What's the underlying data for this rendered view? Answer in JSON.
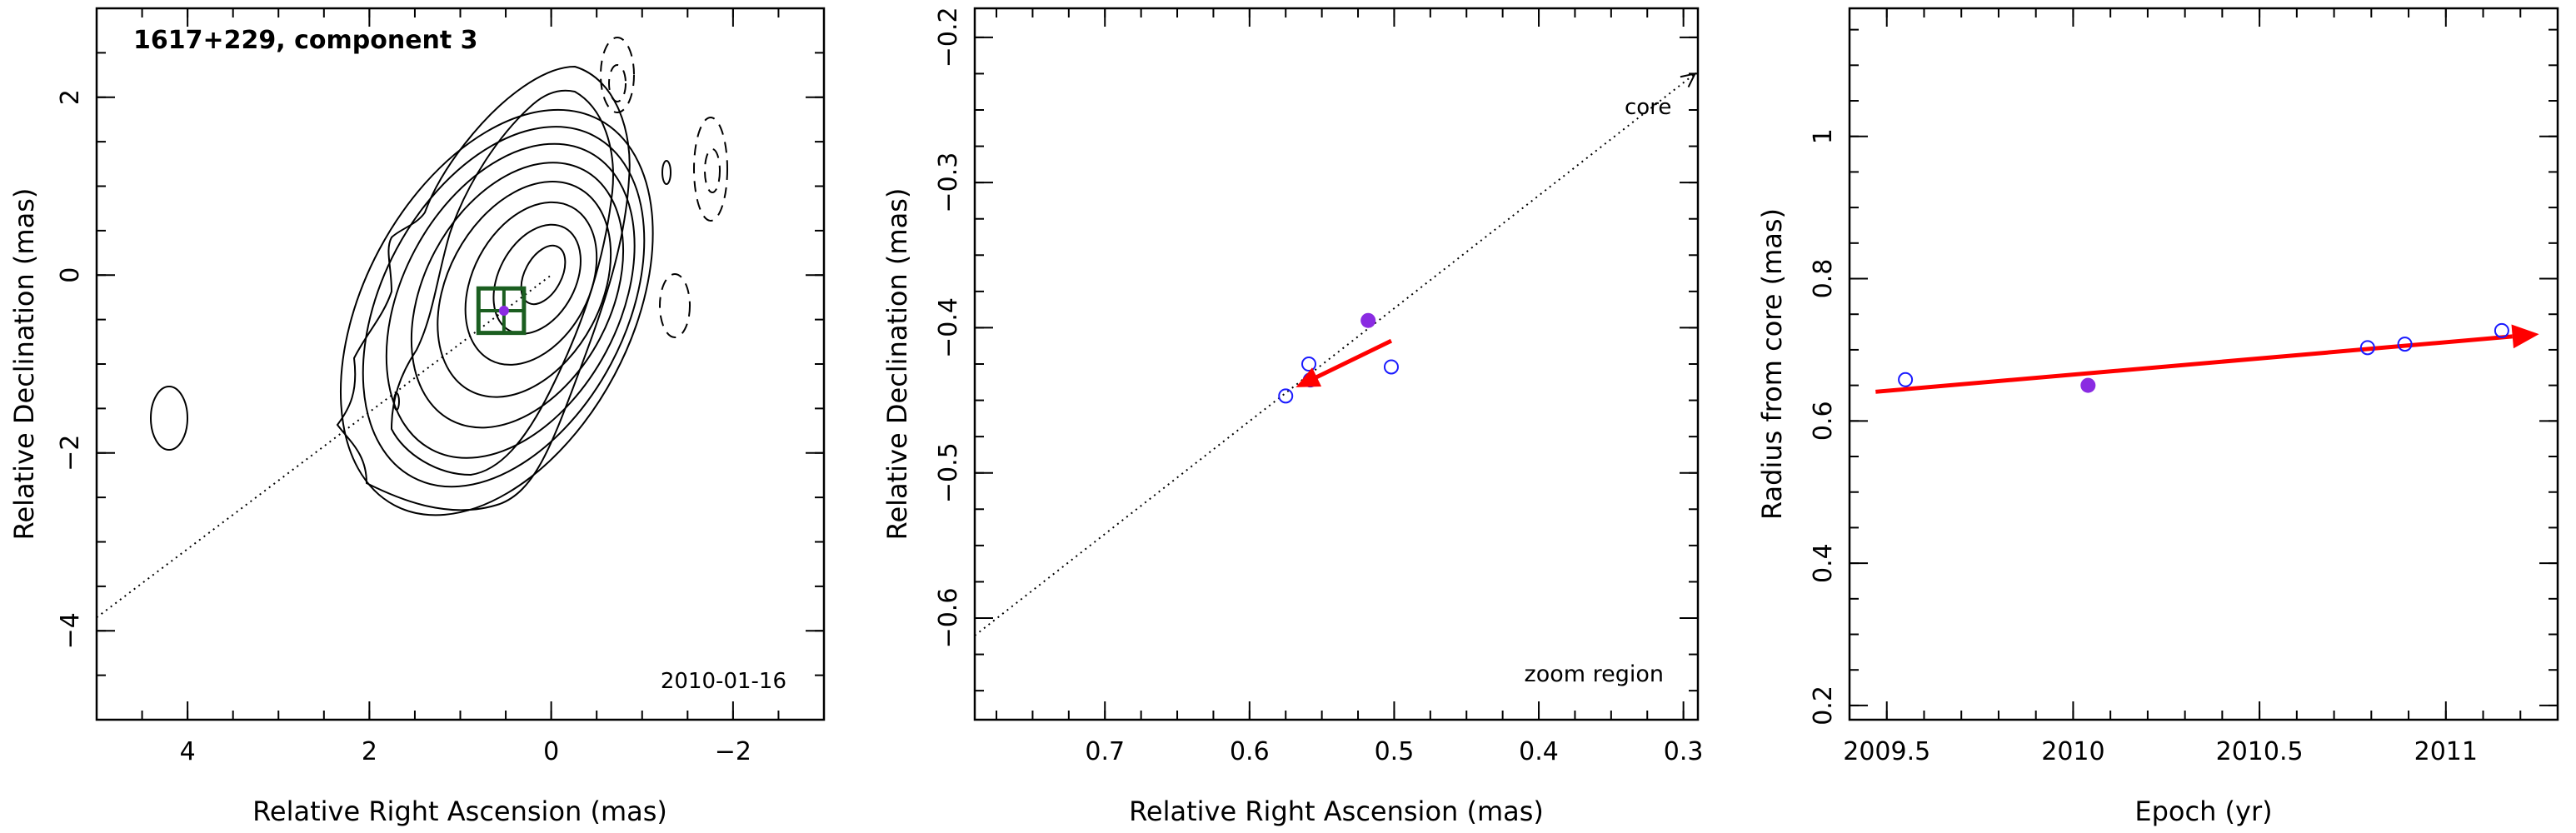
{
  "chart_data": [
    {
      "type": "contour",
      "title": "1617+229, component 3",
      "date": "2010-01-16",
      "xlabel": "Relative Right Ascension (mas)",
      "ylabel": "Relative Declination (mas)",
      "xlim": [
        5,
        -3
      ],
      "ylim": [
        -5,
        3
      ],
      "xticks": [
        4,
        2,
        0,
        -2
      ],
      "yticks": [
        2,
        0,
        -2,
        -4
      ],
      "tick_labels_x": [
        "4",
        "2",
        "0",
        "−2"
      ],
      "tick_labels_y": [
        "2",
        "0",
        "−2",
        "−4"
      ],
      "component_position": {
        "x": 0.52,
        "y": -0.4
      },
      "zoom_box": {
        "x": [
          0.8,
          0.3
        ],
        "y": [
          -0.65,
          -0.15
        ]
      },
      "core_line": {
        "x": [
          5.0,
          0.0
        ],
        "y": [
          -3.85,
          0.0
        ]
      }
    },
    {
      "type": "scatter",
      "annotation_core": "core",
      "annotation_zoom": "zoom region",
      "xlabel": "Relative Right Ascension (mas)",
      "ylabel": "Relative Declination (mas)",
      "xlim": [
        0.79,
        0.29
      ],
      "ylim": [
        -0.67,
        -0.18
      ],
      "xticks": [
        0.7,
        0.6,
        0.5,
        0.4,
        0.3
      ],
      "yticks": [
        -0.2,
        -0.3,
        -0.4,
        -0.5,
        -0.6
      ],
      "tick_labels_x": [
        "0.7",
        "0.6",
        "0.5",
        "0.4",
        "0.3"
      ],
      "tick_labels_y": [
        "−0.2",
        "−0.3",
        "−0.4",
        "−0.5",
        "−0.6"
      ],
      "open_points": [
        {
          "x": 0.575,
          "y": -0.447
        },
        {
          "x": 0.559,
          "y": -0.425
        },
        {
          "x": 0.558,
          "y": -0.436
        },
        {
          "x": 0.502,
          "y": -0.427
        }
      ],
      "filled_points": [
        {
          "x": 0.518,
          "y": -0.395
        }
      ],
      "motion_arrow": {
        "x": [
          0.502,
          0.568
        ],
        "y": [
          -0.409,
          -0.441
        ]
      },
      "core_line": {
        "x": [
          0.79,
          0.292
        ],
        "y": [
          -0.612,
          -0.225
        ]
      },
      "colors": {
        "open": "#1a1aff",
        "filled": "#8a2be2",
        "arrow": "#ff0000"
      }
    },
    {
      "type": "scatter",
      "xlabel": "Epoch (yr)",
      "ylabel": "Radius from core (mas)",
      "xlim": [
        2009.4,
        2011.3
      ],
      "ylim": [
        0.18,
        1.18
      ],
      "xticks": [
        2009.5,
        2010,
        2010.5,
        2011
      ],
      "yticks": [
        0.2,
        0.4,
        0.6,
        0.8,
        1.0
      ],
      "tick_labels_x": [
        "2009.5",
        "2010",
        "2010.5",
        "2011"
      ],
      "tick_labels_y": [
        "0.2",
        "0.4",
        "0.6",
        "0.8",
        "1"
      ],
      "open_points": [
        {
          "x": 2009.55,
          "y": 0.658
        },
        {
          "x": 2010.79,
          "y": 0.703
        },
        {
          "x": 2010.89,
          "y": 0.708
        },
        {
          "x": 2011.15,
          "y": 0.727
        }
      ],
      "filled_points": [
        {
          "x": 2010.04,
          "y": 0.65
        }
      ],
      "fit_arrow": {
        "x": [
          2009.47,
          2011.25
        ],
        "y": [
          0.641,
          0.722
        ]
      },
      "colors": {
        "open": "#1a1aff",
        "filled": "#8a2be2",
        "arrow": "#ff0000"
      }
    }
  ]
}
